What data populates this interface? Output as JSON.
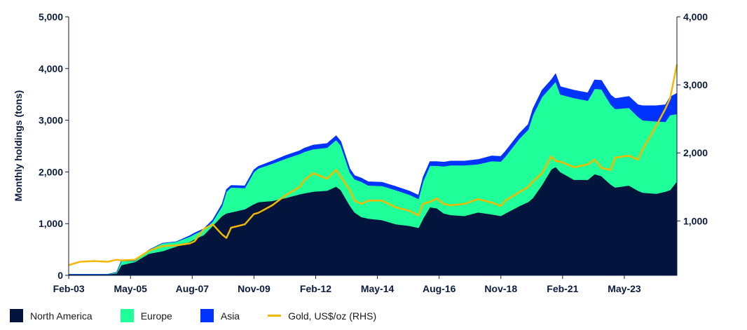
{
  "chart_data": {
    "type": "area",
    "title": "",
    "ylabel": "Monthly holdings (tons)",
    "ylabel_right": "",
    "ylim": [
      0,
      5000
    ],
    "ylim_right": [
      200,
      4000
    ],
    "y_ticks": [
      "0",
      "1,000",
      "2,000",
      "3,000",
      "4,000",
      "5,000"
    ],
    "y_ticks_right": [
      "1,000",
      "2,000",
      "3,000",
      "4,000"
    ],
    "x_ticks": [
      "Feb-03",
      "May-05",
      "Aug-07",
      "Nov-09",
      "Feb-12",
      "May-14",
      "Aug-16",
      "Nov-18",
      "Feb-21",
      "May-23"
    ],
    "legend_position": "bottom-left",
    "x": [
      2003.08,
      2003.5,
      2004.0,
      2004.5,
      2004.83,
      2005.0,
      2005.5,
      2006.0,
      2006.5,
      2007.0,
      2007.5,
      2007.67,
      2008.0,
      2008.33,
      2008.67,
      2008.83,
      2009.0,
      2009.5,
      2009.83,
      2010.0,
      2010.5,
      2011.0,
      2011.5,
      2011.67,
      2012.0,
      2012.5,
      2012.83,
      2013.0,
      2013.33,
      2013.5,
      2013.75,
      2014.0,
      2014.5,
      2015.0,
      2015.5,
      2015.83,
      2016.0,
      2016.25,
      2016.5,
      2016.75,
      2017.0,
      2017.5,
      2018.0,
      2018.5,
      2018.83,
      2019.0,
      2019.5,
      2019.83,
      2020.0,
      2020.33,
      2020.67,
      2020.83,
      2021.0,
      2021.5,
      2022.0,
      2022.25,
      2022.5,
      2022.83,
      2023.0,
      2023.5,
      2023.83,
      2024.0,
      2024.5,
      2024.83,
      2025.0,
      2025.25
    ],
    "series": [
      {
        "name": "North America",
        "color": "#03153d",
        "values": [
          20,
          20,
          20,
          20,
          40,
          200,
          260,
          420,
          470,
          560,
          650,
          700,
          780,
          960,
          1150,
          1200,
          1220,
          1280,
          1380,
          1420,
          1440,
          1500,
          1570,
          1590,
          1620,
          1640,
          1720,
          1650,
          1350,
          1220,
          1130,
          1100,
          1070,
          990,
          960,
          920,
          1100,
          1320,
          1300,
          1200,
          1170,
          1150,
          1220,
          1180,
          1150,
          1200,
          1340,
          1420,
          1500,
          1750,
          2050,
          2100,
          2000,
          1850,
          1850,
          1960,
          1920,
          1760,
          1700,
          1740,
          1640,
          1600,
          1580,
          1620,
          1650,
          1820
        ]
      },
      {
        "name": "Europe",
        "color": "#1fff9a",
        "values": [
          0,
          0,
          0,
          0,
          20,
          80,
          20,
          70,
          150,
          90,
          100,
          100,
          100,
          80,
          190,
          420,
          480,
          410,
          620,
          650,
          720,
          760,
          780,
          800,
          820,
          830,
          900,
          860,
          640,
          640,
          680,
          640,
          660,
          660,
          600,
          560,
          720,
          800,
          820,
          910,
          960,
          980,
          930,
          1030,
          1050,
          1100,
          1300,
          1400,
          1600,
          1700,
          1600,
          1650,
          1500,
          1580,
          1530,
          1650,
          1680,
          1550,
          1520,
          1500,
          1430,
          1400,
          1400,
          1350,
          1450,
          1300
        ]
      },
      {
        "name": "Asia",
        "color": "#0033ff",
        "values": [
          0,
          0,
          0,
          0,
          0,
          0,
          0,
          0,
          0,
          0,
          20,
          20,
          20,
          30,
          40,
          40,
          40,
          40,
          40,
          40,
          50,
          60,
          60,
          70,
          80,
          80,
          80,
          80,
          70,
          70,
          70,
          70,
          70,
          70,
          70,
          70,
          80,
          80,
          80,
          80,
          80,
          80,
          90,
          100,
          100,
          100,
          100,
          100,
          120,
          130,
          130,
          150,
          150,
          150,
          150,
          170,
          170,
          180,
          200,
          220,
          230,
          280,
          300,
          330,
          350,
          400
        ]
      },
      {
        "name": "Gold, US$/oz (RHS)",
        "color": "#f5b800",
        "axis": "right",
        "values": [
          350,
          400,
          410,
          400,
          430,
          420,
          430,
          560,
          630,
          640,
          670,
          700,
          880,
          950,
          800,
          750,
          900,
          950,
          1100,
          1120,
          1230,
          1380,
          1500,
          1600,
          1700,
          1620,
          1750,
          1650,
          1450,
          1300,
          1250,
          1300,
          1300,
          1200,
          1150,
          1080,
          1250,
          1280,
          1330,
          1250,
          1230,
          1250,
          1320,
          1270,
          1220,
          1300,
          1420,
          1500,
          1580,
          1700,
          1950,
          1880,
          1870,
          1790,
          1830,
          1900,
          1780,
          1750,
          1930,
          1960,
          1900,
          2050,
          2400,
          2650,
          2800,
          3300
        ]
      }
    ]
  }
}
